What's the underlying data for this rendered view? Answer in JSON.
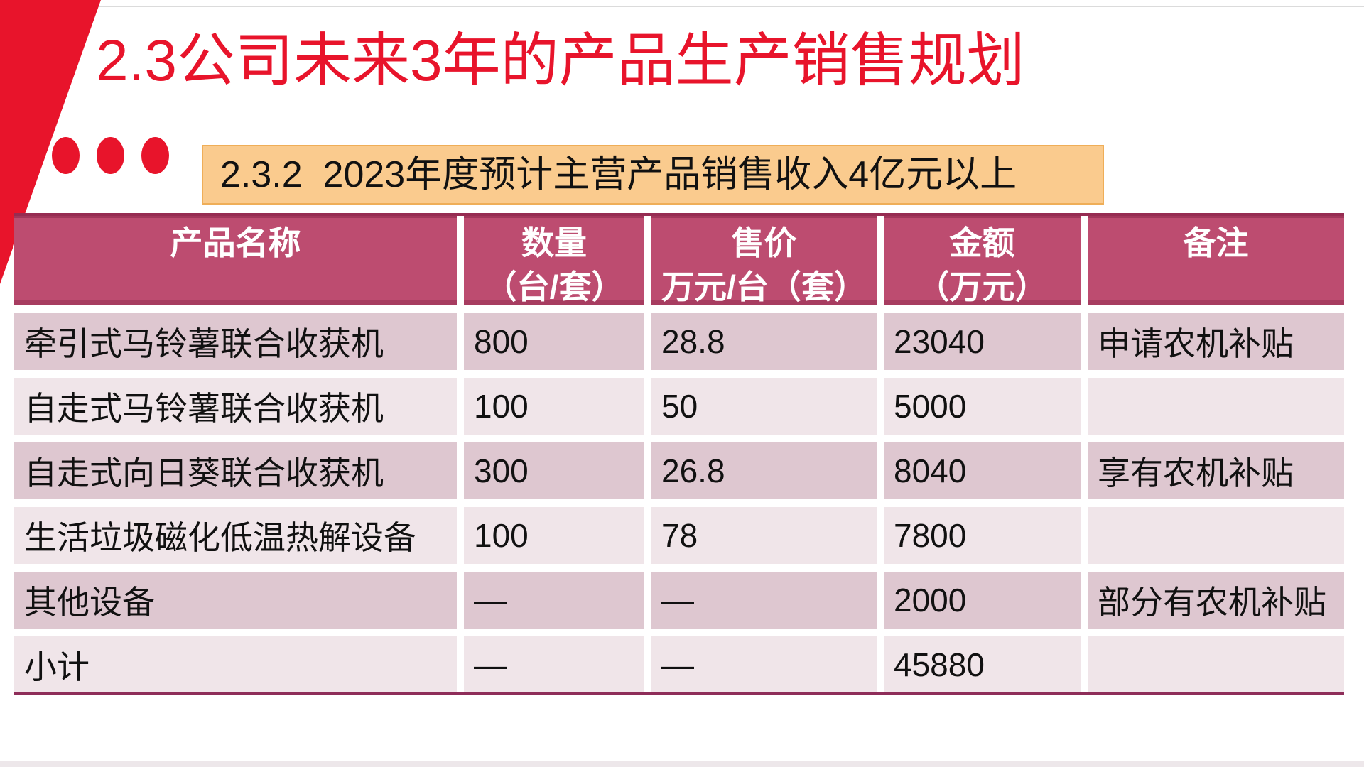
{
  "slide": {
    "title": "2.3公司未来3年的产品生产销售规划",
    "section_banner": "2.3.2  2023年度预计主营产品销售收入4亿元以上",
    "icons": {
      "corner_accent": "diagonal-ribbon",
      "bullets": "three-red-dots"
    },
    "colors": {
      "accent_red": "#E8142B",
      "banner_bg": "#FACB8E",
      "banner_border": "#EFAE58",
      "header_bg": "#BD4C70",
      "header_text": "#FFFFFF",
      "row_dark_bg": "#DEC7D0",
      "row_light_bg": "#F0E5E9",
      "cell_text": "#111111",
      "table_top_line": "#962C52",
      "table_bottom_line": "#8E2D59",
      "top_hairline": "#DBDBDB",
      "bottom_edge": "#EDE7EA"
    }
  },
  "table": {
    "headers": [
      "产品名称",
      "数量\n（台/套）",
      "售价\n万元/台（套）",
      "金额\n（万元）",
      "备注"
    ],
    "rows": [
      {
        "cells": [
          "牵引式马铃薯联合收获机",
          "800",
          "28.8",
          "23040",
          "申请农机补贴"
        ]
      },
      {
        "cells": [
          "自走式马铃薯联合收获机",
          "100",
          "50",
          "5000",
          ""
        ]
      },
      {
        "cells": [
          "自走式向日葵联合收获机",
          "300",
          "26.8",
          "8040",
          "享有农机补贴"
        ]
      },
      {
        "cells": [
          "生活垃圾磁化低温热解设备",
          "100",
          "78",
          "7800",
          ""
        ]
      },
      {
        "cells": [
          "其他设备",
          "—",
          "—",
          "2000",
          "部分有农机补贴"
        ]
      },
      {
        "cells": [
          "小计",
          "—",
          "—",
          "45880",
          ""
        ]
      }
    ]
  }
}
